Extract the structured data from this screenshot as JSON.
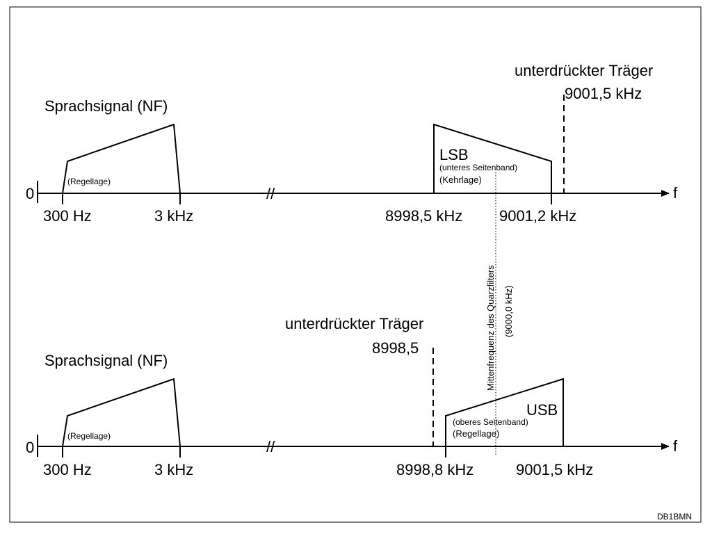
{
  "colors": {
    "line": "#000000",
    "background": "#ffffff",
    "border": "#000000"
  },
  "axis_label": "f",
  "zero_label": "0",
  "break_mark": "//",
  "credit": "DB1BMN",
  "middle": {
    "label": "Mittenfrequenz des Quarzfilters",
    "value": "(9000,0 kHz)"
  },
  "top": {
    "nf": {
      "title": "Sprachsignal (NF)",
      "lage": "(Regellage)",
      "tick_low": "300 Hz",
      "tick_high": "3 kHz"
    },
    "sideband": {
      "name": "LSB",
      "description": "(unteres Seitenband)",
      "lage": "(Kehrlage)",
      "tick_low": "8998,5 kHz",
      "tick_high": "9001,2 kHz"
    },
    "carrier": {
      "label": "unterdrückter Träger",
      "value": "9001,5 kHz"
    }
  },
  "bottom": {
    "nf": {
      "title": "Sprachsignal (NF)",
      "lage": "(Regellage)",
      "tick_low": "300 Hz",
      "tick_high": "3 kHz"
    },
    "sideband": {
      "name": "USB",
      "description": "(oberes Seitenband)",
      "lage": "(Regellage)",
      "tick_low": "8998,8 kHz",
      "tick_high": "9001,5 kHz"
    },
    "carrier": {
      "label": "unterdrückter Träger",
      "value": "8998,5"
    }
  }
}
